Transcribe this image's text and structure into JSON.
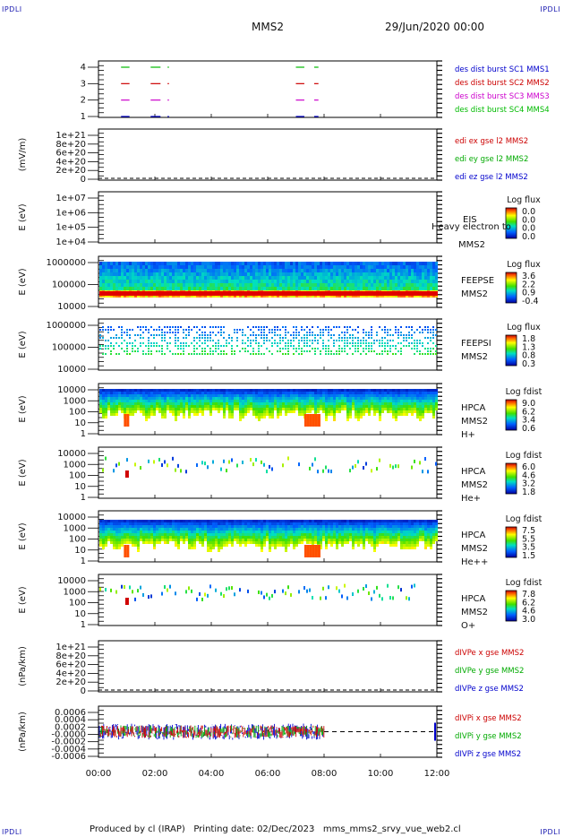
{
  "corner_label": "IPDLI",
  "header": {
    "title": "MMS2",
    "date": "29/Jun/2020 00:00"
  },
  "footer": {
    "text": "Produced by cl (IRAP)   Printing date: 02/Dec/2023   mms_mms2_srvy_vue_web2.cl"
  },
  "chart_data": [
    {
      "type": "line",
      "name": "des_dist_burst",
      "ylabel": "",
      "yticks": [
        "1",
        "2",
        "3",
        "4"
      ],
      "series": [
        {
          "name": "des dist burst SC1 MMS1",
          "color": "#0000cc",
          "level": 1
        },
        {
          "name": "des dist burst SC2 MMS2",
          "color": "#cc0000",
          "level": 3
        },
        {
          "name": "des dist burst SC3 MMS3",
          "color": "#cc00cc",
          "level": 2
        },
        {
          "name": "des dist burst SC4 MMS4",
          "color": "#00bb00",
          "level": 4
        }
      ],
      "intervals_hours": [
        [
          0.8,
          1.1
        ],
        [
          1.85,
          2.2
        ],
        [
          2.45,
          2.5
        ],
        [
          7.0,
          7.3
        ],
        [
          7.65,
          7.8
        ]
      ]
    },
    {
      "type": "line",
      "name": "edi",
      "ylabel": "(mV/m)",
      "yticks": [
        "0",
        "2e+20",
        "4e+20",
        "6e+20",
        "8e+20",
        "1e+21"
      ],
      "series": [
        {
          "name": "edi ex gse l2 MMS2",
          "color": "#cc0000"
        },
        {
          "name": "edi ey gse l2 MMS2",
          "color": "#00aa00"
        },
        {
          "name": "edi ez gse l2 MMS2",
          "color": "#0000cc"
        }
      ],
      "zero_line": 0
    },
    {
      "type": "heatmap",
      "name": "eis",
      "ylabel": "E (eV)",
      "yticks": [
        "1e+04",
        "1e+05",
        "1e+06",
        "1e+07"
      ],
      "labels": [
        "EIS",
        "Heavy electron to",
        "MMS2"
      ],
      "colorbar_title": "Log flux",
      "colorbar_ticks": [
        "0.0",
        "0.0",
        "0.0",
        "0.0"
      ]
    },
    {
      "type": "heatmap",
      "name": "feeps_e",
      "ylabel": "E (eV)",
      "yticks": [
        "10000",
        "100000",
        "1000000"
      ],
      "labels": [
        "FEEPSE",
        "MMS2"
      ],
      "colorbar_title": "Log flux",
      "colorbar_ticks": [
        "3.6",
        "2.2",
        "0.9",
        "-0.4"
      ]
    },
    {
      "type": "heatmap",
      "name": "feeps_i",
      "ylabel": "E (eV)",
      "yticks": [
        "10000",
        "100000",
        "1000000"
      ],
      "labels": [
        "FEEPSI",
        "MMS2"
      ],
      "colorbar_title": "Log flux",
      "colorbar_ticks": [
        "1.8",
        "1.3",
        "0.8",
        "0.3"
      ]
    },
    {
      "type": "heatmap",
      "name": "hpca_h",
      "ylabel": "E (eV)",
      "yticks": [
        "1",
        "10",
        "100",
        "1000",
        "10000"
      ],
      "labels": [
        "HPCA",
        "MMS2",
        "H+"
      ],
      "colorbar_title": "Log fdist",
      "colorbar_ticks": [
        "9.0",
        "6.2",
        "3.4",
        "0.6"
      ]
    },
    {
      "type": "heatmap",
      "name": "hpca_he",
      "ylabel": "E (eV)",
      "yticks": [
        "1",
        "10",
        "100",
        "1000",
        "10000"
      ],
      "labels": [
        "HPCA",
        "MMS2",
        "He+"
      ],
      "colorbar_title": "Log fdist",
      "colorbar_ticks": [
        "6.0",
        "4.6",
        "3.2",
        "1.8"
      ]
    },
    {
      "type": "heatmap",
      "name": "hpca_hepp",
      "ylabel": "E (eV)",
      "yticks": [
        "1",
        "10",
        "100",
        "1000",
        "10000"
      ],
      "labels": [
        "HPCA",
        "MMS2",
        "He++"
      ],
      "colorbar_title": "Log fdist",
      "colorbar_ticks": [
        "7.5",
        "5.5",
        "3.5",
        "1.5"
      ]
    },
    {
      "type": "heatmap",
      "name": "hpca_o",
      "ylabel": "E (eV)",
      "yticks": [
        "1",
        "10",
        "100",
        "1000",
        "10000"
      ],
      "labels": [
        "HPCA",
        "MMS2",
        "O+"
      ],
      "colorbar_title": "Log fdist",
      "colorbar_ticks": [
        "7.8",
        "6.2",
        "4.6",
        "3.0"
      ]
    },
    {
      "type": "line",
      "name": "divpe",
      "ylabel": "(nPa/km)",
      "yticks": [
        "0",
        "2e+20",
        "4e+20",
        "6e+20",
        "8e+20",
        "1e+21"
      ],
      "series": [
        {
          "name": "dIVPe x gse MMS2",
          "color": "#cc0000"
        },
        {
          "name": "dIVPe y gse MMS2",
          "color": "#00aa00"
        },
        {
          "name": "dIVPe z gse MMS2",
          "color": "#0000cc"
        }
      ],
      "zero_line": 0
    },
    {
      "type": "line",
      "name": "divpi",
      "ylabel": "(nPa/km)",
      "yticks": [
        "-0.0006",
        "-0.0004",
        "-0.0002",
        "-0.0000",
        "0.0002",
        "0.0004",
        "0.0006"
      ],
      "series": [
        {
          "name": "dIVPi x gse MMS2",
          "color": "#cc0000"
        },
        {
          "name": "dIVPi y gse MMS2",
          "color": "#00aa00"
        },
        {
          "name": "dIVPi z gse MMS2",
          "color": "#0000cc"
        }
      ],
      "ylim": [
        -0.0007,
        0.0007
      ],
      "data_end_hours": 8.0,
      "zero_line": 0
    }
  ],
  "xaxis": {
    "ticks": [
      "00:00",
      "02:00",
      "04:00",
      "06:00",
      "08:00",
      "10:00",
      "12:00"
    ],
    "range_hours": [
      0,
      12
    ]
  }
}
